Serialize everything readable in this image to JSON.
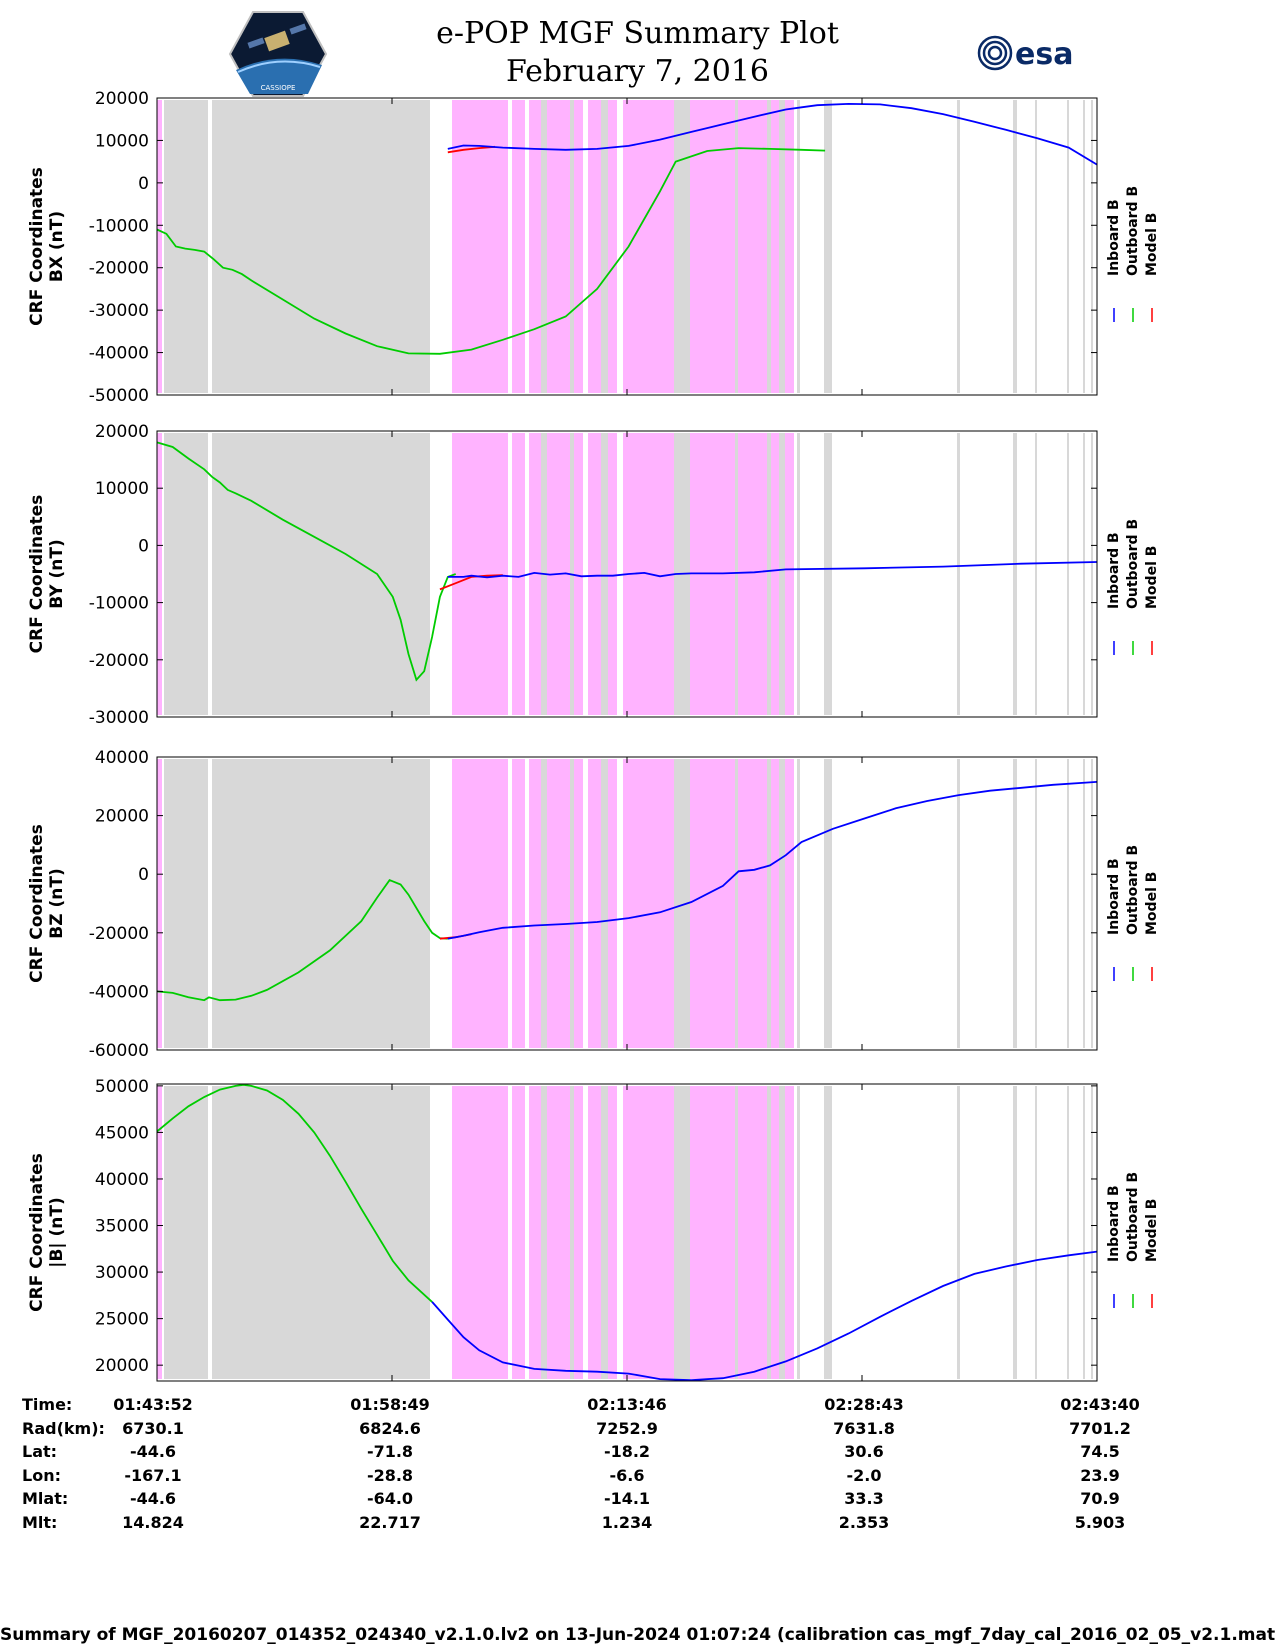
{
  "header": {
    "title_line1": "e-POP MGF Summary Plot",
    "title_line2": "February 7, 2016",
    "logo_left_text": "CASSIOPE",
    "logo_right_text": "esa"
  },
  "colors": {
    "inboard": "#0000ff",
    "outboard": "#00cc00",
    "model": "#ff0000",
    "shade_gray": "#d8d8d8",
    "shade_magenta": "#ffb3ff"
  },
  "legend": [
    "Inboard B",
    "Outboard B",
    "Model B"
  ],
  "x_ticks": [
    "01:43:52",
    "01:58:49",
    "02:13:46",
    "02:28:43",
    "02:43:40"
  ],
  "chart_data": [
    {
      "type": "line",
      "ylabel_line1": "CRF Coordinates",
      "ylabel_line2": "BX (nT)",
      "ylim": [
        -50000,
        20000
      ],
      "yticks": [
        20000,
        10000,
        0,
        -10000,
        -20000,
        -30000,
        -40000,
        -50000
      ],
      "x_unit": "minutes from 01:43:52",
      "xlim": [
        0,
        59.8
      ],
      "series": [
        {
          "name": "Outboard B",
          "x": [
            0,
            0.6,
            1.2,
            1.8,
            2.4,
            3,
            3.6,
            4.2,
            4.8,
            5.4,
            6,
            8,
            10,
            12,
            14,
            16,
            18,
            20,
            22,
            24,
            26,
            28,
            30,
            32,
            33,
            35,
            37,
            39,
            41,
            42.5
          ],
          "values": [
            -11000,
            -12000,
            -15000,
            -15500,
            -15800,
            -16200,
            -18000,
            -20000,
            -20500,
            -21500,
            -23000,
            -27500,
            -32000,
            -35500,
            -38500,
            -40200,
            -40300,
            -39300,
            -37000,
            -34500,
            -31500,
            -25000,
            -15000,
            -2000,
            5000,
            7500,
            8200,
            8000,
            7800,
            7600
          ]
        },
        {
          "name": "Model B",
          "x": [
            18.5,
            19.5,
            20.5,
            21.5
          ],
          "values": [
            7200,
            7800,
            8200,
            8500
          ]
        },
        {
          "name": "Inboard B",
          "x": [
            18.5,
            19.5,
            20.5,
            22,
            24,
            26,
            28,
            30,
            32,
            34,
            36,
            38,
            40,
            41,
            42,
            44,
            46,
            48,
            50,
            52,
            54,
            56,
            58,
            59.8
          ],
          "values": [
            8000,
            8800,
            8700,
            8300,
            8000,
            7800,
            8000,
            8700,
            10200,
            12000,
            13800,
            15600,
            17300,
            17800,
            18300,
            18600,
            18500,
            17600,
            16200,
            14400,
            12500,
            10500,
            8300,
            4300
          ]
        }
      ]
    },
    {
      "type": "line",
      "ylabel_line1": "CRF Coordinates",
      "ylabel_line2": "BY (nT)",
      "ylim": [
        -30000,
        20000
      ],
      "yticks": [
        20000,
        10000,
        0,
        -10000,
        -20000,
        -30000
      ],
      "x_unit": "minutes from 01:43:52",
      "xlim": [
        0,
        59.8
      ],
      "series": [
        {
          "name": "Outboard B",
          "x": [
            0,
            1,
            2,
            3,
            3.5,
            4,
            4.5,
            5,
            6,
            8,
            10,
            12,
            14,
            15,
            15.5,
            16,
            16.5,
            17,
            17.5,
            18,
            18.5,
            19
          ],
          "values": [
            18000,
            17200,
            15200,
            13300,
            12000,
            11000,
            9700,
            9100,
            7800,
            4500,
            1500,
            -1500,
            -5000,
            -9000,
            -13000,
            -19000,
            -23500,
            -22000,
            -16000,
            -9000,
            -5500,
            -5000
          ]
        },
        {
          "name": "Model B",
          "x": [
            18,
            19,
            20,
            21,
            22
          ],
          "values": [
            -7700,
            -6600,
            -5500,
            -5300,
            -5200
          ]
        },
        {
          "name": "Inboard B",
          "x": [
            18.5,
            19.5,
            20,
            21,
            22,
            23,
            24,
            25,
            26,
            27,
            28,
            29,
            30,
            31,
            32,
            33,
            34,
            36,
            38,
            40,
            45,
            50,
            55,
            59.8
          ],
          "values": [
            -5500,
            -5500,
            -5300,
            -5600,
            -5300,
            -5500,
            -4800,
            -5100,
            -4900,
            -5400,
            -5300,
            -5300,
            -5000,
            -4800,
            -5400,
            -5000,
            -4900,
            -4900,
            -4700,
            -4200,
            -4000,
            -3700,
            -3200,
            -2900
          ]
        }
      ]
    },
    {
      "type": "line",
      "ylabel_line1": "CRF Coordinates",
      "ylabel_line2": "BZ (nT)",
      "ylim": [
        -60000,
        40000
      ],
      "yticks": [
        40000,
        20000,
        0,
        -20000,
        -40000,
        -60000
      ],
      "x_unit": "minutes from 01:43:52",
      "xlim": [
        0,
        59.8
      ],
      "series": [
        {
          "name": "Outboard B",
          "x": [
            0,
            1,
            2,
            3,
            3.3,
            4,
            5,
            6,
            7,
            9,
            11,
            13,
            14,
            14.8,
            15.5,
            16,
            17,
            17.5,
            18,
            18.5
          ],
          "values": [
            -40000,
            -40500,
            -42000,
            -43000,
            -42000,
            -43000,
            -42800,
            -41500,
            -39500,
            -33500,
            -26000,
            -16000,
            -8000,
            -2000,
            -3500,
            -7000,
            -16000,
            -20000,
            -21800,
            -22000
          ]
        },
        {
          "name": "Model B",
          "x": [
            18,
            19,
            20
          ],
          "values": [
            -22000,
            -21500,
            -20500
          ]
        },
        {
          "name": "Inboard B",
          "x": [
            18.5,
            19.5,
            20.5,
            22,
            24,
            26,
            28,
            30,
            32,
            34,
            36,
            37,
            38,
            39,
            40,
            41,
            43,
            45,
            47,
            49,
            51,
            53,
            55,
            57,
            59.8
          ],
          "values": [
            -22000,
            -21000,
            -19800,
            -18300,
            -17500,
            -17000,
            -16300,
            -15000,
            -13000,
            -9500,
            -4000,
            1000,
            1500,
            3000,
            6500,
            11000,
            15500,
            19000,
            22500,
            25000,
            27000,
            28500,
            29500,
            30500,
            31500
          ]
        }
      ]
    },
    {
      "type": "line",
      "ylabel_line1": "CRF Coordinates",
      "ylabel_line2": "|B| (nT)",
      "ylim": [
        18300,
        50200
      ],
      "yticks": [
        50000,
        45000,
        40000,
        35000,
        30000,
        25000,
        20000
      ],
      "x_unit": "minutes from 01:43:52",
      "xlim": [
        0,
        59.8
      ],
      "series": [
        {
          "name": "Outboard B",
          "x": [
            0,
            1,
            2,
            3,
            4,
            5,
            5.5,
            6,
            7,
            8,
            9,
            10,
            11,
            12,
            13,
            14,
            15,
            16,
            17.5
          ],
          "values": [
            45100,
            46500,
            47800,
            48800,
            49600,
            50000,
            50100,
            50000,
            49500,
            48500,
            47000,
            45000,
            42500,
            39700,
            36800,
            34000,
            31200,
            29100,
            26800
          ]
        },
        {
          "name": "Inboard B",
          "x": [
            17.5,
            18.5,
            19.5,
            20.5,
            22,
            24,
            26,
            28,
            30,
            32,
            34,
            36,
            38,
            40,
            42,
            44,
            46,
            48,
            50,
            52,
            54,
            56,
            58,
            59.8
          ],
          "values": [
            26800,
            24900,
            23000,
            21600,
            20300,
            19600,
            19400,
            19300,
            19100,
            18500,
            18400,
            18600,
            19300,
            20400,
            21800,
            23400,
            25200,
            26900,
            28500,
            29800,
            30600,
            31300,
            31800,
            32200
          ]
        }
      ]
    }
  ],
  "table": {
    "rows": [
      {
        "label": "Time:",
        "values": [
          "01:43:52",
          "01:58:49",
          "02:13:46",
          "02:28:43",
          "02:43:40"
        ]
      },
      {
        "label": "Rad(km):",
        "values": [
          "6730.1",
          "6824.6",
          "7252.9",
          "7631.8",
          "7701.2"
        ]
      },
      {
        "label": "Lat:",
        "values": [
          "-44.6",
          "-71.8",
          "-18.2",
          "30.6",
          "74.5"
        ]
      },
      {
        "label": "Lon:",
        "values": [
          "-167.1",
          "-28.8",
          "-6.6",
          "-2.0",
          "23.9"
        ]
      },
      {
        "label": "Mlat:",
        "values": [
          "-44.6",
          "-64.0",
          "-14.1",
          "33.3",
          "70.9"
        ]
      },
      {
        "label": "Mlt:",
        "values": [
          "14.824",
          "22.717",
          "1.234",
          "2.353",
          "5.903"
        ]
      }
    ]
  },
  "footer": "Summary of MGF_20160207_014352_024340_v2.1.0.lv2 on 13-Jun-2024 01:07:24 (calibration cas_mgf_7day_cal_2016_02_05_v2.1.mat )"
}
